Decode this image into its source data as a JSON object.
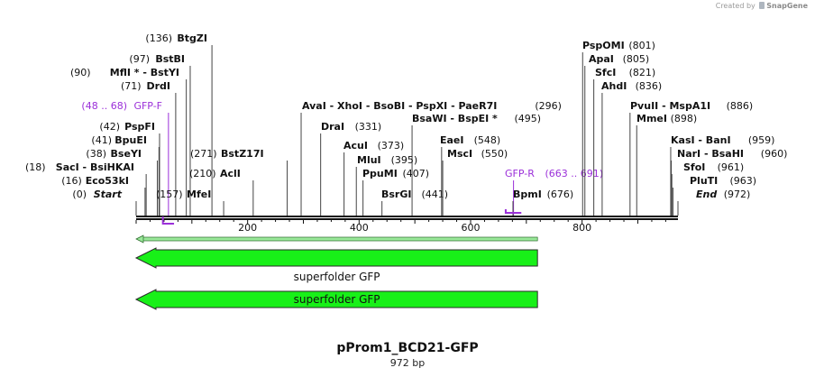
{
  "credit": {
    "prefix": "Created by",
    "brand": "SnapGene"
  },
  "title": "pProm1_BCD21-GFP",
  "subtitle": "972 bp",
  "sequence_length": 972,
  "ruler_ticks": [
    {
      "pos": 200,
      "label": "200"
    },
    {
      "pos": 400,
      "label": "400"
    },
    {
      "pos": 600,
      "label": "600"
    },
    {
      "pos": 800,
      "label": "800"
    }
  ],
  "colors": {
    "feature_fill": "#18f018",
    "feature_stroke": "#2a2a2a",
    "primer": "#9b30d9",
    "thin_arrow": "#9ae89a"
  },
  "left_sites": [
    {
      "num": "(136)",
      "name": "BtgZI",
      "pos": 136
    },
    {
      "num": "(97)",
      "name": "BstBI",
      "pos": 97
    },
    {
      "num": "(90)",
      "name": "MflI * - BstYI",
      "pos": 90
    },
    {
      "num": "(71)",
      "name": "DrdI",
      "pos": 71
    },
    {
      "num": "(48 .. 68)",
      "name": "GFP-F",
      "pos": 58,
      "primer": true
    },
    {
      "num": "(42)",
      "name": "PspFI",
      "pos": 42
    },
    {
      "num": "(41)",
      "name": "BpuEI",
      "pos": 41
    },
    {
      "num": "(38)",
      "name": "BseYI",
      "pos": 38
    },
    {
      "num": "(18)",
      "name": "SacI - BsiHKAI",
      "pos": 18
    },
    {
      "num": "(16)",
      "name": "Eco53kI",
      "pos": 16
    },
    {
      "num": "(0)",
      "name": "Start",
      "pos": 0,
      "italic": true
    }
  ],
  "mid_sites": [
    {
      "num": "(271)",
      "name": "BstZ17I",
      "pos": 271
    },
    {
      "num": "(210)",
      "name": "AclI",
      "pos": 210
    },
    {
      "num": "(157)",
      "name": "MfeI",
      "pos": 157
    },
    {
      "name": "AvaI - XhoI - BsoBI - PspXI - PaeR7I",
      "num": "(296)",
      "pos": 296
    },
    {
      "name": "BsaWI - BspEI *",
      "num": "(495)",
      "pos": 495
    },
    {
      "name": "DraI",
      "num": "(331)",
      "pos": 331
    },
    {
      "name": "AcuI",
      "num": "(373)",
      "pos": 373
    },
    {
      "name": "MluI",
      "num": "(395)",
      "pos": 395
    },
    {
      "name": "PpuMI",
      "num": "(407)",
      "pos": 407
    },
    {
      "name": "BsrGI",
      "num": "(441)",
      "pos": 441
    },
    {
      "name": "EaeI",
      "num": "(548)",
      "pos": 548
    },
    {
      "name": "MscI",
      "num": "(550)",
      "pos": 550
    },
    {
      "name": "GFP-R",
      "num": "(663 .. 691)",
      "pos": 677,
      "primer": true
    },
    {
      "name": "BpmI",
      "num": "(676)",
      "pos": 676
    }
  ],
  "right_sites": [
    {
      "name": "PspOMI",
      "num": "(801)",
      "pos": 801
    },
    {
      "name": "ApaI",
      "num": "(805)",
      "pos": 805
    },
    {
      "name": "SfcI",
      "num": "(821)",
      "pos": 821
    },
    {
      "name": "AhdI",
      "num": "(836)",
      "pos": 836
    },
    {
      "name": "PvuII - MspA1I",
      "num": "(886)",
      "pos": 886
    },
    {
      "name": "MmeI",
      "num": "(898)",
      "pos": 898
    },
    {
      "name": "KasI - BanI",
      "num": "(959)",
      "pos": 959
    },
    {
      "name": "NarI - BsaHI",
      "num": "(960)",
      "pos": 960
    },
    {
      "name": "SfoI",
      "num": "(961)",
      "pos": 961
    },
    {
      "name": "PluTI",
      "num": "(963)",
      "pos": 963
    },
    {
      "name": "End",
      "num": "(972)",
      "pos": 972,
      "italic": true
    }
  ],
  "features": [
    {
      "name": "superfolder GFP",
      "start": 0,
      "end": 720,
      "direction": "reverse",
      "style": "thin"
    },
    {
      "name": "superfolder GFP",
      "start": 0,
      "end": 720,
      "direction": "reverse",
      "style": "arrow",
      "label_position": "below"
    },
    {
      "name": "superfolder GFP",
      "start": 0,
      "end": 720,
      "direction": "reverse",
      "style": "arrow",
      "label_position": "inside"
    }
  ]
}
